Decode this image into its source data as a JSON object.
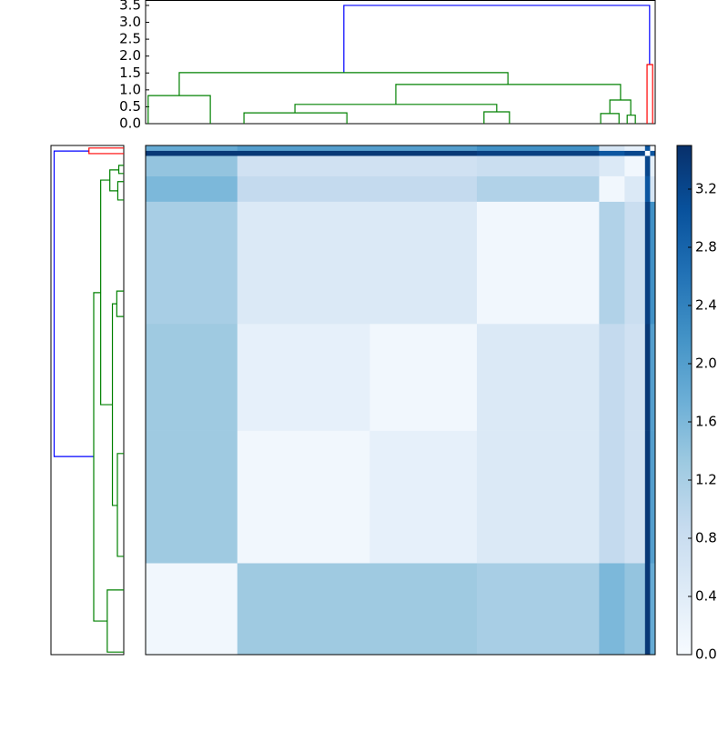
{
  "chart_data": {
    "type": "clustermap",
    "dendrogram": {
      "xlim": [
        0,
        1000
      ],
      "ylim": [
        0,
        3.66
      ],
      "yticks": [
        {
          "value": 0,
          "label": "0.0"
        },
        0.5,
        {
          "value": 1,
          "label": "1.0"
        },
        1.5,
        {
          "value": 2,
          "label": "2.0"
        },
        2.5,
        {
          "value": 3,
          "label": "3.0"
        },
        3.5
      ],
      "links": [
        {
          "x": [
            389,
            389,
            989,
            989
          ],
          "y": [
            1.51,
            3.5,
            3.5,
            1.75
          ],
          "color": "#0000ff"
        },
        {
          "x": [
            984,
            984,
            995,
            995
          ],
          "y": [
            0,
            1.75,
            1.75,
            0
          ],
          "color": "#ff0000"
        },
        {
          "x": [
            66,
            66,
            711,
            711
          ],
          "y": [
            0.83,
            1.51,
            1.51,
            1.16
          ],
          "color": "#008000"
        },
        {
          "x": [
            5,
            5,
            127,
            127
          ],
          "y": [
            0,
            0.83,
            0.83,
            0
          ],
          "color": "#008000"
        },
        {
          "x": [
            491,
            491,
            932,
            932
          ],
          "y": [
            0.57,
            1.16,
            1.16,
            0.7
          ],
          "color": "#008000"
        },
        {
          "x": [
            293,
            293,
            689,
            689
          ],
          "y": [
            0.32,
            0.57,
            0.57,
            0.35
          ],
          "color": "#008000"
        },
        {
          "x": [
            911,
            911,
            952,
            952
          ],
          "y": [
            0.3,
            0.7,
            0.7,
            0.25
          ],
          "color": "#008000"
        },
        {
          "x": [
            193,
            193,
            395,
            395
          ],
          "y": [
            0,
            0.32,
            0.32,
            0
          ],
          "color": "#008000"
        },
        {
          "x": [
            664,
            664,
            714,
            714
          ],
          "y": [
            0,
            0.35,
            0.35,
            0
          ],
          "color": "#008000"
        },
        {
          "x": [
            945,
            945,
            961,
            961
          ],
          "y": [
            0,
            0.25,
            0.25,
            0
          ],
          "color": "#008000"
        },
        {
          "x": [
            893,
            893,
            929,
            929
          ],
          "y": [
            0,
            0.3,
            0.3,
            0
          ],
          "color": "#008000"
        }
      ]
    },
    "heatmap": {
      "group_sizes": [
        18,
        26,
        21,
        24,
        5,
        4,
        1,
        1
      ],
      "values": [
        [
          0.1,
          1.3,
          1.3,
          1.2,
          1.6,
          1.4,
          3.4,
          1.8
        ],
        [
          1.3,
          0.1,
          0.3,
          0.5,
          0.9,
          0.7,
          3.4,
          2.0
        ],
        [
          1.3,
          0.3,
          0.1,
          0.5,
          0.9,
          0.7,
          3.4,
          2.0
        ],
        [
          1.2,
          0.5,
          0.5,
          0.1,
          1.1,
          0.8,
          3.3,
          2.2
        ],
        [
          1.6,
          0.9,
          0.9,
          1.1,
          0.1,
          0.5,
          3.0,
          0.6
        ],
        [
          1.4,
          0.7,
          0.7,
          0.8,
          0.5,
          0.1,
          3.2,
          0.3
        ],
        [
          3.4,
          3.4,
          3.4,
          3.3,
          3.0,
          3.2,
          0.0,
          3.0
        ],
        [
          1.8,
          2.0,
          2.0,
          2.2,
          0.6,
          0.3,
          3.0,
          0.0
        ]
      ],
      "clim": [
        0,
        3.5
      ],
      "colors": [
        "#f7fbff",
        "#deebf7",
        "#c6dbef",
        "#9ecae1",
        "#6baed6",
        "#4292c6",
        "#2171b5",
        "#08519c",
        "#08306b"
      ]
    },
    "colorbar": {
      "ticks": [
        {
          "value": 0,
          "label": "0.0"
        },
        0.4,
        0.8,
        1.2,
        1.6,
        {
          "value": 2,
          "label": "2.0"
        },
        2.4,
        2.8,
        3.2
      ]
    }
  }
}
